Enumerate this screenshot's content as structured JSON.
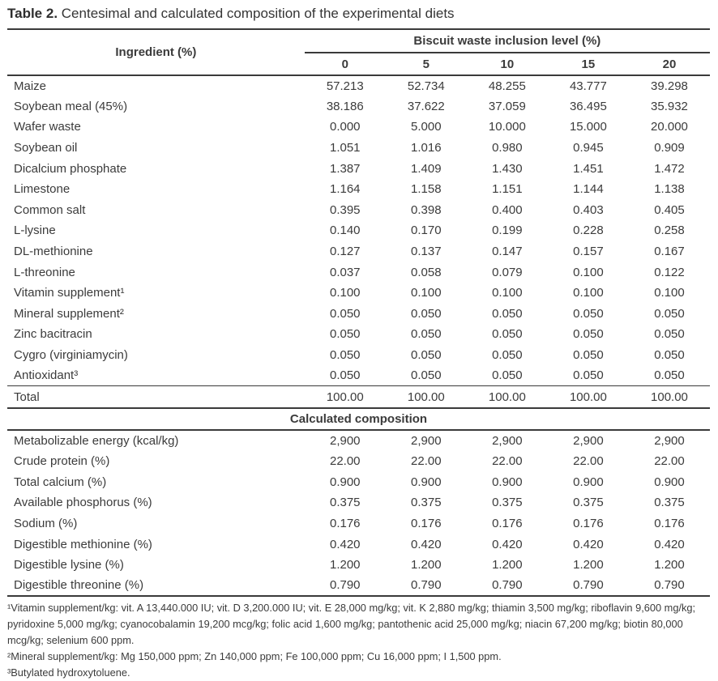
{
  "title": {
    "label": "Table 2.",
    "caption": "Centesimal and calculated composition of the experimental diets"
  },
  "colors": {
    "text": "#3b3b3b",
    "rule": "#3a3a3a",
    "background": "#ffffff"
  },
  "table": {
    "ingredient_header": "Ingredient (%)",
    "group_header": "Biscuit waste inclusion level (%)",
    "levels": [
      "0",
      "5",
      "10",
      "15",
      "20"
    ],
    "ingredients": [
      {
        "label": "Maize",
        "values": [
          "57.213",
          "52.734",
          "48.255",
          "43.777",
          "39.298"
        ]
      },
      {
        "label": "Soybean meal (45%)",
        "values": [
          "38.186",
          "37.622",
          "37.059",
          "36.495",
          "35.932"
        ]
      },
      {
        "label": "Wafer waste",
        "values": [
          "0.000",
          "5.000",
          "10.000",
          "15.000",
          "20.000"
        ]
      },
      {
        "label": "Soybean oil",
        "values": [
          "1.051",
          "1.016",
          "0.980",
          "0.945",
          "0.909"
        ]
      },
      {
        "label": "Dicalcium phosphate",
        "values": [
          "1.387",
          "1.409",
          "1.430",
          "1.451",
          "1.472"
        ]
      },
      {
        "label": "Limestone",
        "values": [
          "1.164",
          "1.158",
          "1.151",
          "1.144",
          "1.138"
        ]
      },
      {
        "label": "Common salt",
        "values": [
          "0.395",
          "0.398",
          "0.400",
          "0.403",
          "0.405"
        ]
      },
      {
        "label": "L-lysine",
        "values": [
          "0.140",
          "0.170",
          "0.199",
          "0.228",
          "0.258"
        ]
      },
      {
        "label": "DL-methionine",
        "values": [
          "0.127",
          "0.137",
          "0.147",
          "0.157",
          "0.167"
        ]
      },
      {
        "label": "L-threonine",
        "values": [
          "0.037",
          "0.058",
          "0.079",
          "0.100",
          "0.122"
        ]
      },
      {
        "label": "Vitamin supplement¹",
        "values": [
          "0.100",
          "0.100",
          "0.100",
          "0.100",
          "0.100"
        ]
      },
      {
        "label": "Mineral supplement²",
        "values": [
          "0.050",
          "0.050",
          "0.050",
          "0.050",
          "0.050"
        ]
      },
      {
        "label": "Zinc bacitracin",
        "values": [
          "0.050",
          "0.050",
          "0.050",
          "0.050",
          "0.050"
        ]
      },
      {
        "label": "Cygro (virginiamycin)",
        "values": [
          "0.050",
          "0.050",
          "0.050",
          "0.050",
          "0.050"
        ]
      },
      {
        "label": "Antioxidant³",
        "values": [
          "0.050",
          "0.050",
          "0.050",
          "0.050",
          "0.050"
        ]
      }
    ],
    "total": {
      "label": "Total",
      "values": [
        "100.00",
        "100.00",
        "100.00",
        "100.00",
        "100.00"
      ]
    },
    "section_header": "Calculated composition",
    "composition": [
      {
        "label": "Metabolizable energy (kcal/kg)",
        "values": [
          "2,900",
          "2,900",
          "2,900",
          "2,900",
          "2,900"
        ]
      },
      {
        "label": "Crude protein (%)",
        "values": [
          "22.00",
          "22.00",
          "22.00",
          "22.00",
          "22.00"
        ]
      },
      {
        "label": "Total calcium (%)",
        "values": [
          "0.900",
          "0.900",
          "0.900",
          "0.900",
          "0.900"
        ]
      },
      {
        "label": "Available phosphorus (%)",
        "values": [
          "0.375",
          "0.375",
          "0.375",
          "0.375",
          "0.375"
        ]
      },
      {
        "label": "Sodium (%)",
        "values": [
          "0.176",
          "0.176",
          "0.176",
          "0.176",
          "0.176"
        ]
      },
      {
        "label": "Digestible methionine (%)",
        "values": [
          "0.420",
          "0.420",
          "0.420",
          "0.420",
          "0.420"
        ]
      },
      {
        "label": "Digestible lysine (%)",
        "values": [
          "1.200",
          "1.200",
          "1.200",
          "1.200",
          "1.200"
        ]
      },
      {
        "label": "Digestible threonine (%)",
        "values": [
          "0.790",
          "0.790",
          "0.790",
          "0.790",
          "0.790"
        ]
      }
    ]
  },
  "footnotes": [
    "¹Vitamin supplement/kg: vit. A 13,440.000 IU; vit. D 3,200.000 IU; vit. E 28,000 mg/kg; vit. K 2,880 mg/kg; thiamin 3,500 mg/kg; riboflavin 9,600 mg/kg; pyridoxine 5,000 mg/kg; cyanocobalamin 19,200 mcg/kg; folic acid 1,600 mg/kg; pantothenic acid 25,000 mg/kg; niacin 67,200 mg/kg; biotin 80,000 mcg/kg; selenium 600 ppm.",
    "²Mineral supplement/kg: Mg 150,000 ppm; Zn 140,000 ppm; Fe 100,000 ppm; Cu 16,000 ppm; I 1,500 ppm.",
    "³Butylated hydroxytoluene."
  ]
}
